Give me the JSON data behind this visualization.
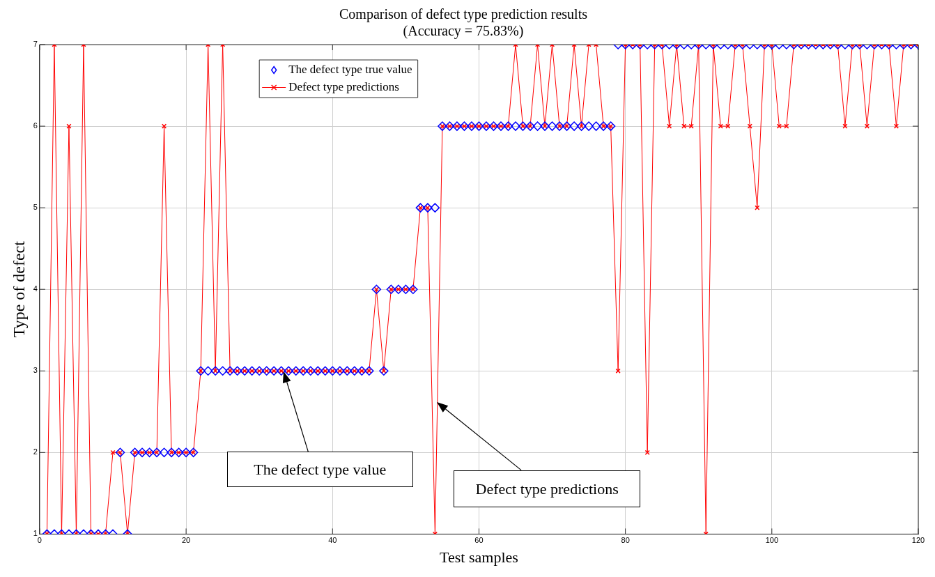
{
  "chart_data": {
    "type": "line",
    "title": "Comparison of defect type prediction results",
    "subtitle": "(Accuracy = 75.83%)",
    "xlabel": "Test samples",
    "ylabel": "Type of defect",
    "x": [
      1,
      2,
      3,
      4,
      5,
      6,
      7,
      8,
      9,
      10,
      11,
      12,
      13,
      14,
      15,
      16,
      17,
      18,
      19,
      20,
      21,
      22,
      23,
      24,
      25,
      26,
      27,
      28,
      29,
      30,
      31,
      32,
      33,
      34,
      35,
      36,
      37,
      38,
      39,
      40,
      41,
      42,
      43,
      44,
      45,
      46,
      47,
      48,
      49,
      50,
      51,
      52,
      53,
      54,
      55,
      56,
      57,
      58,
      59,
      60,
      61,
      62,
      63,
      64,
      65,
      66,
      67,
      68,
      69,
      70,
      71,
      72,
      73,
      74,
      75,
      76,
      77,
      78,
      79,
      80,
      81,
      82,
      83,
      84,
      85,
      86,
      87,
      88,
      89,
      90,
      91,
      92,
      93,
      94,
      95,
      96,
      97,
      98,
      99,
      100,
      101,
      102,
      103,
      104,
      105,
      106,
      107,
      108,
      109,
      110,
      111,
      112,
      113,
      114,
      115,
      116,
      117,
      118,
      119,
      120
    ],
    "series": [
      {
        "name": "The defect type true value",
        "type": "scatter",
        "marker": "diamond",
        "color": "#0000ff",
        "values": [
          1,
          1,
          1,
          1,
          1,
          1,
          1,
          1,
          1,
          1,
          2,
          1,
          2,
          2,
          2,
          2,
          2,
          2,
          2,
          2,
          2,
          3,
          3,
          3,
          3,
          3,
          3,
          3,
          3,
          3,
          3,
          3,
          3,
          3,
          3,
          3,
          3,
          3,
          3,
          3,
          3,
          3,
          3,
          3,
          3,
          4,
          3,
          4,
          4,
          4,
          4,
          5,
          5,
          5,
          6,
          6,
          6,
          6,
          6,
          6,
          6,
          6,
          6,
          6,
          6,
          6,
          6,
          6,
          6,
          6,
          6,
          6,
          6,
          6,
          6,
          6,
          6,
          6,
          7,
          7,
          7,
          7,
          7,
          7,
          7,
          7,
          7,
          7,
          7,
          7,
          7,
          7,
          7,
          7,
          7,
          7,
          7,
          7,
          7,
          7,
          7,
          7,
          7,
          7,
          7,
          7,
          7,
          7,
          7,
          7,
          7,
          7,
          7,
          7,
          7,
          7,
          7,
          7,
          7,
          7
        ]
      },
      {
        "name": "Defect type predictions",
        "type": "line",
        "marker": "cross",
        "line_style": "solid",
        "color": "#ff0000",
        "values": [
          1,
          7,
          1,
          6,
          1,
          7,
          1,
          1,
          1,
          2,
          2,
          1,
          2,
          2,
          2,
          2,
          6,
          2,
          2,
          2,
          2,
          3,
          7,
          3,
          7,
          3,
          3,
          3,
          3,
          3,
          3,
          3,
          3,
          3,
          3,
          3,
          3,
          3,
          3,
          3,
          3,
          3,
          3,
          3,
          3,
          4,
          3,
          4,
          4,
          4,
          4,
          5,
          5,
          1,
          6,
          6,
          6,
          6,
          6,
          6,
          6,
          6,
          6,
          6,
          7,
          6,
          6,
          7,
          6,
          7,
          6,
          6,
          7,
          6,
          7,
          7,
          6,
          6,
          3,
          7,
          7,
          7,
          2,
          7,
          7,
          6,
          7,
          6,
          6,
          7,
          1,
          7,
          6,
          6,
          7,
          7,
          6,
          5,
          7,
          7,
          6,
          6,
          7,
          7,
          7,
          7,
          7,
          7,
          7,
          6,
          7,
          7,
          6,
          7,
          7,
          7,
          6,
          7,
          7,
          7
        ]
      }
    ],
    "xlim": [
      0,
      120
    ],
    "xticks": [
      0,
      20,
      40,
      60,
      80,
      100,
      120
    ],
    "ylim": [
      1,
      7
    ],
    "yticks": [
      1,
      2,
      3,
      4,
      5,
      6,
      7
    ],
    "grid": true,
    "legend": "top left",
    "annotations": [
      "The defect type value",
      "Defect type predictions"
    ]
  }
}
